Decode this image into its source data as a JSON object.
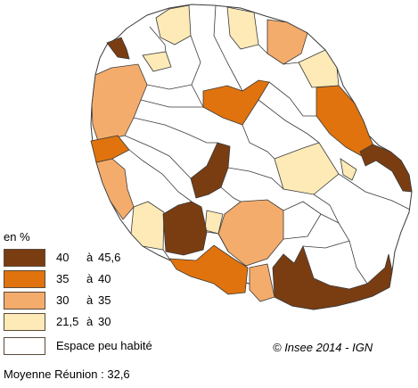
{
  "legend": {
    "unit": "en %",
    "classes": [
      {
        "low": "40",
        "sep": "à",
        "high": "45,6",
        "color": "#7a3d12"
      },
      {
        "low": "35",
        "sep": "à",
        "high": "40",
        "color": "#e0730d"
      },
      {
        "low": "30",
        "sep": "à",
        "high": "35",
        "color": "#f4ac6c"
      },
      {
        "low": "21,5",
        "sep": "à",
        "high": "30",
        "color": "#fdeab6"
      }
    ],
    "uninhabited": {
      "label": "Espace peu habité",
      "color": "#ffffff"
    }
  },
  "credits": "© Insee 2014 - IGN",
  "average": "Moyenne Réunion : 32,6",
  "colors": {
    "border": "#3a3a3a",
    "d": "#7a3d12",
    "o": "#e0730d",
    "l": "#f4ac6c",
    "y": "#fdeab6",
    "w": "#ffffff"
  }
}
